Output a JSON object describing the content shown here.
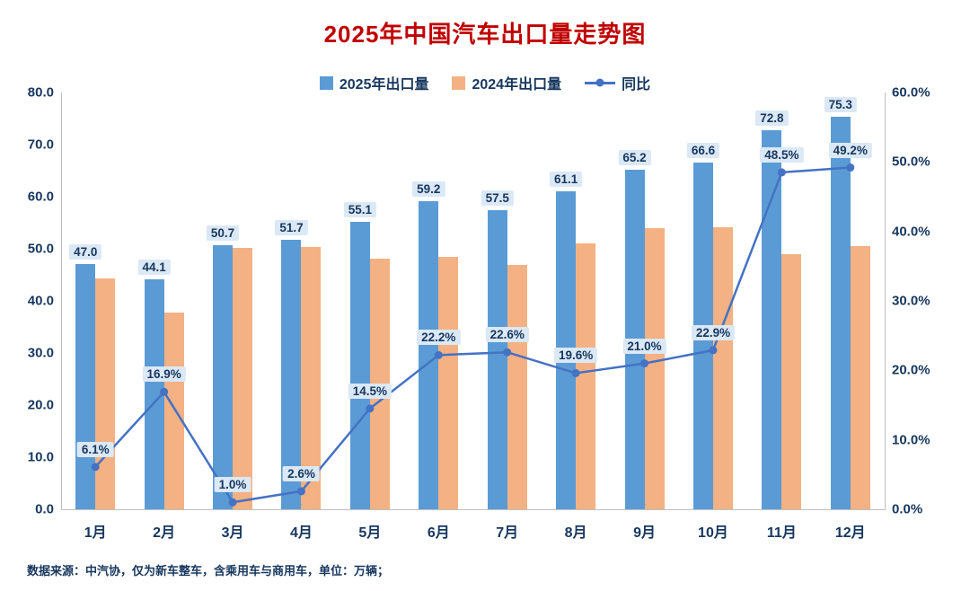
{
  "title": "2025年中国汽车出口量走势图",
  "footnote": "数据来源：中汽协，仅为新车整车，含乘用车与商用车，单位：万辆；",
  "colors": {
    "bar_2025": "#5b9bd5",
    "bar_2024": "#f4b183",
    "line_yoy": "#4472c4",
    "label_bg": "#dbe8f5",
    "label_text": "#17375e",
    "axis_text": "#17375e",
    "axis_line": "#bfbfbf",
    "title_text": "#c00000"
  },
  "chart_data": {
    "type": "bar",
    "subtype": "bar+line-combo",
    "title": "2025年中国汽车出口量走势图",
    "categories": [
      "1月",
      "2月",
      "3月",
      "4月",
      "5月",
      "6月",
      "7月",
      "8月",
      "9月",
      "10月",
      "11月",
      "12月"
    ],
    "series": [
      {
        "name": "2025年出口量",
        "type": "bar",
        "axis": "left",
        "color": "#5b9bd5",
        "values": [
          47.0,
          44.1,
          50.7,
          51.7,
          55.1,
          59.2,
          57.5,
          61.1,
          65.2,
          66.6,
          72.8,
          75.3
        ],
        "labels": [
          "47.0",
          "44.1",
          "50.7",
          "51.7",
          "55.1",
          "59.2",
          "57.5",
          "61.1",
          "65.2",
          "66.6",
          "72.8",
          "75.3"
        ]
      },
      {
        "name": "2024年出口量",
        "type": "bar",
        "axis": "left",
        "color": "#f4b183",
        "values": [
          44.3,
          37.7,
          50.2,
          50.4,
          48.1,
          48.4,
          46.9,
          51.1,
          53.9,
          54.2,
          49.0,
          50.5
        ],
        "labels": []
      },
      {
        "name": "同比",
        "type": "line",
        "axis": "right",
        "color": "#4472c4",
        "values": [
          6.1,
          16.9,
          1.0,
          2.6,
          14.5,
          22.2,
          22.6,
          19.6,
          21.0,
          22.9,
          48.5,
          49.2
        ],
        "labels": [
          "6.1%",
          "16.9%",
          "1.0%",
          "2.6%",
          "14.5%",
          "22.2%",
          "22.6%",
          "19.6%",
          "21.0%",
          "22.9%",
          "48.5%",
          "49.2%"
        ]
      }
    ],
    "left_axis": {
      "min": 0,
      "max": 80,
      "step": 10,
      "tick_labels": [
        "0.0",
        "10.0",
        "20.0",
        "30.0",
        "40.0",
        "50.0",
        "60.0",
        "70.0",
        "80.0"
      ]
    },
    "right_axis": {
      "min": 0,
      "max": 60,
      "step": 10,
      "suffix": "%",
      "tick_labels": [
        "0.0%",
        "10.0%",
        "20.0%",
        "30.0%",
        "40.0%",
        "50.0%",
        "60.0%"
      ]
    },
    "legend_position": "top",
    "grid": false,
    "xlabel": "",
    "ylabel": ""
  }
}
